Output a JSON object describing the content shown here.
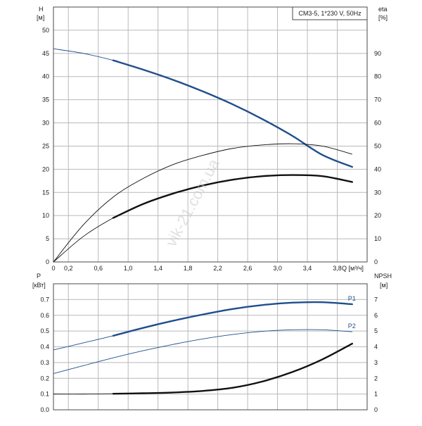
{
  "chart_data": [
    {
      "type": "line",
      "legend_label": "CM3-5, 1*230 V, 50Hz",
      "x_axis": {
        "label": "Q [м³/ч]",
        "range": [
          0,
          4.2
        ],
        "ticks": [
          "0",
          "0,2",
          "0,6",
          "1,0",
          "1,4",
          "1,8",
          "2,2",
          "2,6",
          "3,0",
          "3,4",
          "3,8"
        ],
        "tick_values": [
          0,
          0.2,
          0.6,
          1.0,
          1.4,
          1.8,
          2.2,
          2.6,
          3.0,
          3.4,
          3.8
        ]
      },
      "y_axis_left": {
        "label_line1": "H",
        "label_line2": "[м]",
        "range": [
          0,
          55
        ],
        "ticks": [
          "0",
          "5",
          "10",
          "15",
          "20",
          "25",
          "30",
          "35",
          "40",
          "45",
          "50"
        ],
        "tick_values": [
          0,
          5,
          10,
          15,
          20,
          25,
          30,
          35,
          40,
          45,
          50
        ]
      },
      "y_axis_right": {
        "label_line1": "eta",
        "label_line2": "[%]",
        "range": [
          0,
          110
        ],
        "ticks": [
          "0",
          "10",
          "20",
          "30",
          "40",
          "50",
          "60",
          "70",
          "80",
          "90"
        ],
        "tick_values": [
          0,
          10,
          20,
          30,
          40,
          50,
          60,
          70,
          80,
          90
        ]
      },
      "grid": true,
      "series": [
        {
          "axis": "left",
          "color": "#1f4e8c",
          "x": [
            0,
            0.4,
            0.8,
            1.2,
            1.6,
            2.0,
            2.4,
            2.8,
            3.2,
            3.6,
            4.0
          ],
          "y": [
            46,
            45,
            43.5,
            41.5,
            39.3,
            36.8,
            34.0,
            30.8,
            27.2,
            23.1,
            20.5
          ],
          "highlight_from": 0.8
        },
        {
          "axis": "right",
          "color": "#111111",
          "x": [
            0,
            0.4,
            0.8,
            1.2,
            1.6,
            2.0,
            2.4,
            2.8,
            3.2,
            3.6,
            4.0
          ],
          "y": [
            0,
            16,
            28,
            36,
            42,
            46,
            49,
            50.5,
            51,
            50,
            46.5
          ],
          "highlight_from": null
        },
        {
          "axis": "right",
          "color": "#111111",
          "x": [
            0,
            0.4,
            0.8,
            1.2,
            1.6,
            2.0,
            2.4,
            2.8,
            3.2,
            3.6,
            4.0
          ],
          "y": [
            0,
            11,
            19,
            25,
            29.5,
            33,
            35.5,
            37,
            37.5,
            37,
            34.5
          ],
          "highlight_from": 0.8
        }
      ],
      "watermark": "vik-21.com.ua"
    },
    {
      "type": "line",
      "x_axis": {
        "range": [
          0,
          4.2
        ]
      },
      "y_axis_left": {
        "label_line1": "P",
        "label_line2": "[кВт]",
        "range": [
          0,
          0.8
        ],
        "ticks": [
          "0.0",
          "0.1",
          "0.2",
          "0.3",
          "0.4",
          "0.5",
          "0.6",
          "0.7"
        ],
        "tick_values": [
          0,
          0.1,
          0.2,
          0.3,
          0.4,
          0.5,
          0.6,
          0.7
        ]
      },
      "y_axis_right": {
        "label_line1": "NPSH",
        "label_line2": "[м]",
        "range": [
          0,
          8
        ],
        "ticks": [
          "0",
          "1",
          "2",
          "3",
          "4",
          "5",
          "6",
          "7"
        ],
        "tick_values": [
          0,
          1,
          2,
          3,
          4,
          5,
          6,
          7
        ]
      },
      "grid": true,
      "series": [
        {
          "name": "P1",
          "axis": "left",
          "color": "#1f4e8c",
          "x": [
            0,
            0.4,
            0.8,
            1.2,
            1.6,
            2.0,
            2.4,
            2.8,
            3.2,
            3.6,
            4.0
          ],
          "y": [
            0.38,
            0.425,
            0.47,
            0.52,
            0.565,
            0.605,
            0.64,
            0.665,
            0.68,
            0.683,
            0.67
          ],
          "highlight_from": 0.8
        },
        {
          "name": "P2",
          "axis": "left",
          "color": "#1f4e8c",
          "x": [
            0,
            0.4,
            0.8,
            1.2,
            1.6,
            2.0,
            2.4,
            2.8,
            3.2,
            3.6,
            4.0
          ],
          "y": [
            0.23,
            0.28,
            0.33,
            0.375,
            0.415,
            0.45,
            0.478,
            0.498,
            0.508,
            0.508,
            0.495
          ],
          "highlight_from": null
        },
        {
          "axis": "right",
          "color": "#111111",
          "x": [
            0,
            0.4,
            0.8,
            1.2,
            1.6,
            2.0,
            2.4,
            2.8,
            3.2,
            3.6,
            4.0
          ],
          "y": [
            1.0,
            1.0,
            1.02,
            1.05,
            1.1,
            1.2,
            1.4,
            1.8,
            2.4,
            3.2,
            4.2
          ],
          "highlight_from": 0.8
        }
      ]
    }
  ]
}
